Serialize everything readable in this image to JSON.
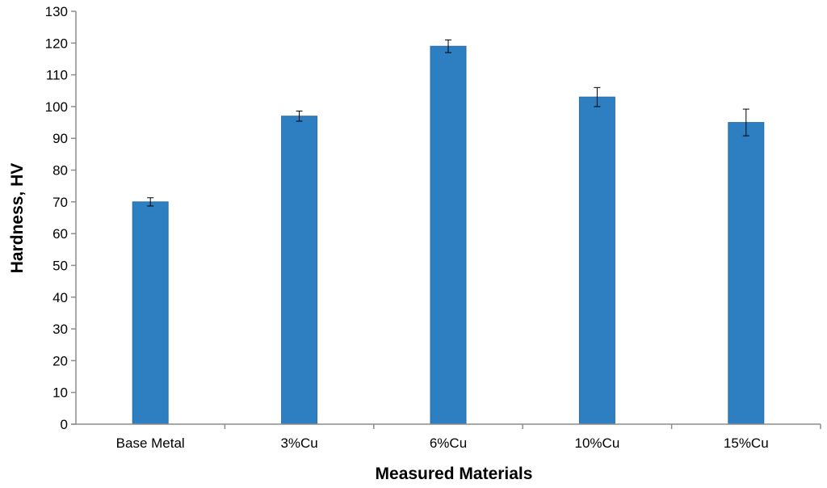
{
  "chart_data": {
    "type": "bar",
    "title": "",
    "xlabel": "Measured Materials",
    "ylabel": "Hardness, HV",
    "categories": [
      "Base Metal",
      "3%Cu",
      "6%Cu",
      "10%Cu",
      "15%Cu"
    ],
    "values": [
      70,
      97,
      119,
      103,
      95
    ],
    "error": [
      1.3,
      1.6,
      2.0,
      3.0,
      4.2
    ],
    "ylim": [
      0,
      130
    ],
    "yticks": [
      0,
      10,
      20,
      30,
      40,
      50,
      60,
      70,
      80,
      90,
      100,
      110,
      120,
      130
    ],
    "ytick_labels": [
      "0",
      "10",
      "20",
      "30",
      "40",
      "50",
      "60",
      "70",
      "80",
      "90",
      "100",
      "110",
      "120",
      "130"
    ],
    "grid": false,
    "legend": "none",
    "colors": {
      "bar_fill": "#2e7fc2",
      "bar_edge": "#2a6ea8",
      "axis": "#8c8c8c",
      "error_bar": "#000000"
    }
  }
}
